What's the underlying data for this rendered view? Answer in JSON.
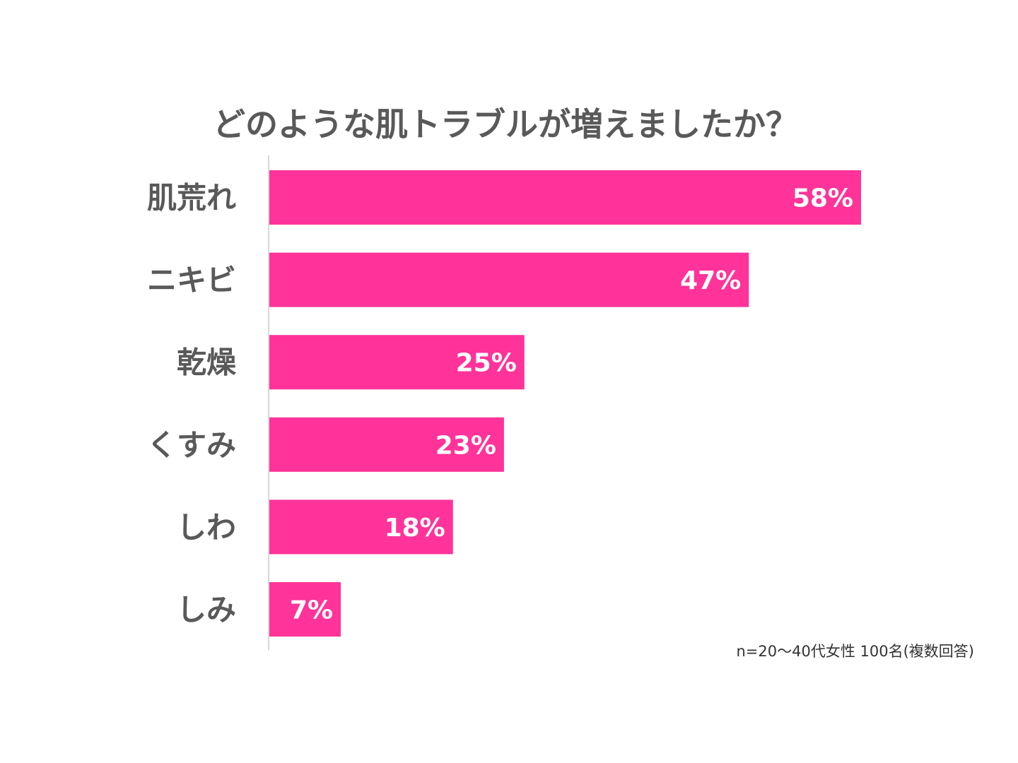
{
  "chart_data": {
    "type": "bar",
    "orientation": "horizontal",
    "title": "どのような肌トラブルが増えましたか？",
    "categories": [
      "肌荒れ",
      "ニキビ",
      "乾燥",
      "くすみ",
      "しわ",
      "しみ"
    ],
    "values": [
      58,
      47,
      25,
      23,
      18,
      7
    ],
    "value_labels": [
      "58%",
      "47%",
      "25%",
      "23%",
      "18%",
      "7%"
    ],
    "unit": "%",
    "xlim": [
      0,
      60
    ],
    "grid": false,
    "bar_color": "#ff3399",
    "value_label_color": "#ffffff",
    "category_label_color": "#595959"
  },
  "note": "n=20～40代女性 100名(複数回答)"
}
